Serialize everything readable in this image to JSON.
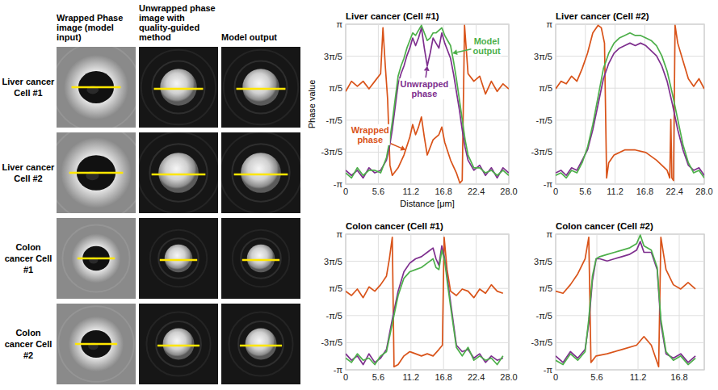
{
  "image_panel": {
    "column_headers": [
      "Wrapped Phase image (model input)",
      "Unwrapped phase image with quality-guided method",
      "Model output"
    ],
    "row_labels": [
      "Liver cancer Cell #1",
      "Liver cancer Cell #2",
      "Colon cancer Cell #1",
      "Colon cancer Cell #2"
    ]
  },
  "chart_data": [
    {
      "type": "line",
      "title": "Liver cancer (Cell #1)",
      "x_label": "Distance [μm]",
      "y_label": "Phase value",
      "xlim": [
        0,
        28
      ],
      "xticks": [
        0,
        5.6,
        11.2,
        16.8,
        22.4,
        {
          "value": 28,
          "label": "28.0"
        }
      ],
      "ylim": [
        -3.1416,
        3.1416
      ],
      "yticks": [
        {
          "value": -3.1416,
          "label": "-π"
        },
        {
          "value": -1.885,
          "label": "-3π/5"
        },
        {
          "value": -0.6283,
          "label": "-π/5"
        },
        {
          "value": 0.6283,
          "label": "π/5"
        },
        {
          "value": 1.885,
          "label": "3π/5"
        },
        {
          "value": 3.1416,
          "label": "π"
        }
      ],
      "grid": true,
      "series": [
        {
          "color": "#d95319",
          "x": [
            0,
            1,
            2,
            3,
            4,
            5,
            6,
            6.4,
            6.8,
            7.2,
            7.6,
            8,
            9,
            10,
            11,
            11.5,
            12,
            12.5,
            13,
            13.5,
            14,
            15,
            16,
            16.5,
            17,
            18,
            19,
            19.6,
            20,
            20.4,
            21,
            22,
            23,
            24,
            25,
            26,
            27,
            28
          ],
          "values": [
            0.5,
            0.9,
            0.7,
            0.9,
            0.6,
            0.9,
            1.2,
            3.0,
            1.5,
            0.2,
            -2.4,
            -2.8,
            -2.5,
            -2.0,
            -1.3,
            -0.8,
            -1.2,
            -0.9,
            -0.5,
            -1.3,
            -2.0,
            -1.4,
            -1.2,
            -0.9,
            -1.5,
            -2.2,
            -2.7,
            -3.1,
            -3.0,
            3.1,
            1.2,
            0.9,
            1.1,
            0.4,
            0.9,
            0.5,
            0.8,
            0.6
          ]
        },
        {
          "color": "#7e2f8e",
          "x": [
            0,
            1,
            2,
            3,
            4,
            5,
            6,
            7,
            7.5,
            8,
            8.5,
            9,
            9.5,
            10,
            10.5,
            11,
            11.5,
            12,
            12.5,
            13,
            13.5,
            14,
            14.5,
            15,
            15.5,
            16,
            16.5,
            17,
            17.5,
            18,
            18.5,
            19,
            19.5,
            20,
            20.5,
            21,
            22,
            23,
            24,
            25,
            26,
            27,
            28
          ],
          "values": [
            -2.6,
            -2.8,
            -2.6,
            -2.9,
            -2.5,
            -2.7,
            -2.6,
            -2.2,
            -1.7,
            -1.0,
            -0.1,
            0.8,
            1.2,
            1.5,
            1.9,
            2.2,
            2.6,
            2.3,
            2.6,
            3.0,
            2.2,
            1.5,
            2.0,
            2.6,
            2.4,
            2.2,
            2.8,
            2.4,
            2.1,
            1.8,
            1.2,
            0.5,
            -0.2,
            -1.0,
            -1.7,
            -2.2,
            -2.6,
            -2.4,
            -2.8,
            -2.5,
            -2.9,
            -2.5,
            -2.7
          ]
        },
        {
          "color": "#4daf4a",
          "x": [
            0,
            1,
            2,
            3,
            4,
            5,
            6,
            7,
            7.5,
            8,
            8.5,
            9,
            9.5,
            10,
            10.5,
            11,
            11.5,
            12,
            12.5,
            13,
            13.5,
            14,
            14.5,
            15,
            15.5,
            16,
            16.5,
            17,
            17.5,
            18,
            18.5,
            19,
            19.5,
            20,
            20.5,
            21,
            22,
            23,
            24,
            25,
            26,
            27,
            28
          ],
          "values": [
            -2.7,
            -2.9,
            -2.5,
            -2.8,
            -2.6,
            -2.6,
            -2.7,
            -2.1,
            -1.5,
            -0.7,
            0.2,
            1.1,
            1.5,
            1.8,
            2.2,
            2.5,
            2.8,
            2.7,
            2.9,
            3.1,
            2.8,
            2.5,
            2.6,
            2.8,
            2.8,
            2.9,
            3.0,
            2.7,
            2.5,
            2.3,
            1.7,
            1.0,
            0.2,
            -0.6,
            -1.4,
            -2.0,
            -2.5,
            -2.5,
            -2.7,
            -2.6,
            -2.8,
            -2.6,
            -2.8
          ]
        }
      ],
      "annotations": [
        {
          "text": "Model output",
          "x": 24.2,
          "y": 2.3,
          "arrow_to": [
            18.3,
            2.0
          ],
          "color": "#4daf4a"
        },
        {
          "text": "Unwrapped phase",
          "x": 13.5,
          "y": 0.6,
          "arrow_to": [
            14,
            1.5
          ],
          "color": "#7e2f8e"
        },
        {
          "text": "Wrapped phase",
          "x": 4.2,
          "y": -1.2,
          "arrow_to": [
            10.3,
            -1.8
          ],
          "color": "#d95319"
        }
      ]
    },
    {
      "type": "line",
      "title": "Liver cancer (Cell #2)",
      "xlim": [
        0,
        28
      ],
      "xticks": [
        0,
        5.6,
        11.2,
        16.8,
        22.4,
        {
          "value": 28,
          "label": "28.0"
        }
      ],
      "ylim": [
        -3.1416,
        3.1416
      ],
      "yticks": [
        {
          "value": -3.1416,
          "label": "-π"
        },
        {
          "value": -1.885,
          "label": "-3π/5"
        },
        {
          "value": -0.6283,
          "label": "-π/5"
        },
        {
          "value": 0.6283,
          "label": "π/5"
        },
        {
          "value": 1.885,
          "label": "3π/5"
        },
        {
          "value": 3.1416,
          "label": "π"
        }
      ],
      "grid": true,
      "series": [
        {
          "color": "#d95319",
          "x": [
            0,
            1,
            2,
            3,
            4,
            5,
            6,
            7,
            8,
            8.6,
            9.2,
            9.6,
            10,
            11,
            13,
            15,
            17,
            19,
            20,
            21,
            21.5,
            21.7,
            21.9,
            22.2,
            22.5,
            23,
            24,
            25,
            26,
            27,
            28
          ],
          "values": [
            0.6,
            0.9,
            0.8,
            1.1,
            0.9,
            1.4,
            2.0,
            2.8,
            3.1,
            3.0,
            2.4,
            -2.9,
            -2.3,
            -2.0,
            -1.8,
            -1.8,
            -1.9,
            -2.2,
            -2.4,
            -2.6,
            -2.9,
            -0.6,
            -2.9,
            -3.0,
            3.1,
            2.4,
            1.7,
            1.0,
            0.7,
            1.0,
            0.6
          ]
        },
        {
          "color": "#7e2f8e",
          "x": [
            0,
            1,
            2,
            3,
            4,
            5,
            6,
            7,
            8,
            9,
            10,
            11,
            12,
            13,
            14,
            15,
            16,
            17,
            18,
            19,
            20,
            21,
            22,
            23,
            24,
            25,
            26,
            27,
            28
          ],
          "values": [
            -2.7,
            -2.6,
            -2.8,
            -2.5,
            -2.6,
            -2.2,
            -1.8,
            -1.0,
            0.0,
            1.0,
            1.6,
            2.0,
            2.2,
            2.3,
            2.4,
            2.3,
            2.4,
            2.3,
            2.1,
            1.9,
            1.5,
            0.9,
            0.0,
            -1.0,
            -1.8,
            -2.4,
            -2.6,
            -2.5,
            -2.8
          ]
        },
        {
          "color": "#4daf4a",
          "x": [
            0,
            1,
            2,
            3,
            4,
            5,
            6,
            7,
            8,
            9,
            10,
            11,
            12,
            13,
            14,
            15,
            16,
            17,
            18,
            19,
            20,
            21,
            22,
            23,
            24,
            25,
            26,
            27,
            28
          ],
          "values": [
            -2.8,
            -2.7,
            -2.9,
            -2.6,
            -2.7,
            -2.3,
            -1.7,
            -0.8,
            0.3,
            1.4,
            2.0,
            2.4,
            2.6,
            2.7,
            2.8,
            2.7,
            2.7,
            2.6,
            2.5,
            2.3,
            1.9,
            1.3,
            0.4,
            -0.6,
            -1.6,
            -2.3,
            -2.7,
            -2.6,
            -2.9
          ]
        }
      ]
    },
    {
      "type": "line",
      "title": "Colon cancer (Cell #1)",
      "xlim": [
        0,
        28
      ],
      "xticks": [
        0,
        5.6,
        11.2,
        16.8,
        22.4,
        {
          "value": 28,
          "label": "28.0"
        }
      ],
      "ylim": [
        -3.1416,
        3.1416
      ],
      "yticks": [
        {
          "value": -3.1416,
          "label": "-π"
        },
        {
          "value": -1.885,
          "label": "-3π/5"
        },
        {
          "value": -0.6283,
          "label": "-π/5"
        },
        {
          "value": 0.6283,
          "label": "π/5"
        },
        {
          "value": 1.885,
          "label": "3π/5"
        },
        {
          "value": 3.1416,
          "label": "π"
        }
      ],
      "grid": true,
      "series": [
        {
          "color": "#d95319",
          "x": [
            0,
            1,
            2,
            3,
            4,
            5,
            6,
            7,
            7.5,
            8,
            8.3,
            9,
            10,
            11,
            12,
            13,
            14,
            15,
            16,
            16.6,
            16.9,
            17.4,
            18,
            19,
            20,
            21,
            22,
            23,
            24,
            25,
            26,
            27
          ],
          "values": [
            0.5,
            0.3,
            0.6,
            0.2,
            0.7,
            0.5,
            0.8,
            1.2,
            2.0,
            3.0,
            -3.0,
            -2.9,
            -2.5,
            -2.3,
            -2.4,
            -2.5,
            -2.4,
            -2.5,
            -2.2,
            -2.0,
            3.0,
            1.5,
            0.5,
            0.3,
            0.6,
            0.5,
            0.2,
            0.6,
            0.4,
            0.8,
            0.5,
            0.4
          ]
        },
        {
          "color": "#7e2f8e",
          "x": [
            0,
            1,
            2,
            3,
            4,
            5,
            6,
            7,
            8,
            9,
            10,
            11,
            12,
            13,
            14,
            15,
            15.5,
            16,
            16.5,
            17,
            17.5,
            18,
            19,
            20,
            21,
            22,
            23,
            24,
            25,
            26,
            27
          ],
          "values": [
            -2.4,
            -2.7,
            -2.5,
            -2.9,
            -2.4,
            -2.8,
            -2.6,
            -2.2,
            -0.8,
            0.5,
            1.4,
            1.8,
            2.0,
            2.1,
            2.3,
            2.5,
            2.0,
            1.7,
            2.6,
            2.0,
            1.0,
            0.0,
            -2.0,
            -2.3,
            -2.2,
            -2.6,
            -2.4,
            -2.8,
            -2.5,
            -2.7,
            -2.6
          ]
        },
        {
          "color": "#4daf4a",
          "x": [
            0,
            1,
            2,
            3,
            4,
            5,
            6,
            7,
            8,
            9,
            10,
            11,
            12,
            13,
            14,
            15,
            15.5,
            16,
            16.5,
            17,
            17.5,
            18,
            19,
            20,
            21,
            22,
            23,
            24,
            25,
            26,
            27
          ],
          "values": [
            -2.6,
            -2.8,
            -2.4,
            -2.7,
            -2.6,
            -2.9,
            -2.5,
            -2.3,
            -1.0,
            0.3,
            1.1,
            1.4,
            1.5,
            1.6,
            1.8,
            2.0,
            1.6,
            1.5,
            2.4,
            1.9,
            0.8,
            -0.2,
            -2.1,
            -2.5,
            -2.1,
            -2.7,
            -2.5,
            -2.7,
            -2.6,
            -2.9,
            -2.5
          ]
        }
      ]
    },
    {
      "type": "line",
      "title": "Colon cancer (Cell #2)",
      "xlim": [
        0,
        20.2
      ],
      "xticks": [
        0,
        5.6,
        11.2,
        16.8
      ],
      "ylim": [
        -3.1416,
        3.1416
      ],
      "yticks": [
        {
          "value": -3.1416,
          "label": "-π"
        },
        {
          "value": -1.885,
          "label": "-3π/5"
        },
        {
          "value": -0.6283,
          "label": "-π/5"
        },
        {
          "value": 0.6283,
          "label": "π/5"
        },
        {
          "value": 1.885,
          "label": "3π/5"
        },
        {
          "value": 3.1416,
          "label": "π"
        }
      ],
      "grid": true,
      "series": [
        {
          "color": "#d95319",
          "x": [
            0,
            1,
            2,
            3,
            4,
            4.5,
            4.8,
            5.5,
            7,
            9,
            11,
            12,
            13,
            13.6,
            14,
            14.3,
            15,
            16,
            17,
            18,
            19
          ],
          "values": [
            0.5,
            0.4,
            0.8,
            1.3,
            2.0,
            3.0,
            -2.8,
            -2.5,
            -2.4,
            -2.2,
            -2.0,
            -1.6,
            -2.0,
            -2.6,
            -3.0,
            3.0,
            1.5,
            0.8,
            0.6,
            0.9,
            0.6
          ]
        },
        {
          "color": "#7e2f8e",
          "x": [
            0,
            1,
            2,
            3,
            4,
            4.5,
            5,
            5.5,
            6,
            7,
            8,
            9,
            10,
            11,
            11.5,
            12,
            13,
            13.8,
            14.3,
            15,
            16,
            17,
            18,
            19
          ],
          "values": [
            -2.5,
            -2.8,
            -2.3,
            -2.6,
            -2.2,
            -1.0,
            1.0,
            2.0,
            2.0,
            1.9,
            2.0,
            2.1,
            2.2,
            2.4,
            2.8,
            2.3,
            2.3,
            1.5,
            -1.0,
            -2.4,
            -2.6,
            -2.4,
            -2.8,
            -2.5
          ]
        },
        {
          "color": "#4daf4a",
          "x": [
            0,
            1,
            2,
            3,
            4,
            4.5,
            5,
            5.5,
            6,
            7,
            8,
            9,
            10,
            11,
            11.5,
            12,
            13,
            13.8,
            14.3,
            15,
            16,
            17,
            18,
            19
          ],
          "values": [
            -2.7,
            -2.9,
            -2.4,
            -2.7,
            -2.3,
            -0.8,
            1.2,
            2.0,
            2.1,
            2.2,
            2.3,
            2.4,
            2.5,
            2.7,
            3.1,
            2.6,
            2.4,
            1.6,
            -0.8,
            -2.3,
            -2.7,
            -2.5,
            -2.9,
            -2.6
          ]
        }
      ]
    }
  ]
}
